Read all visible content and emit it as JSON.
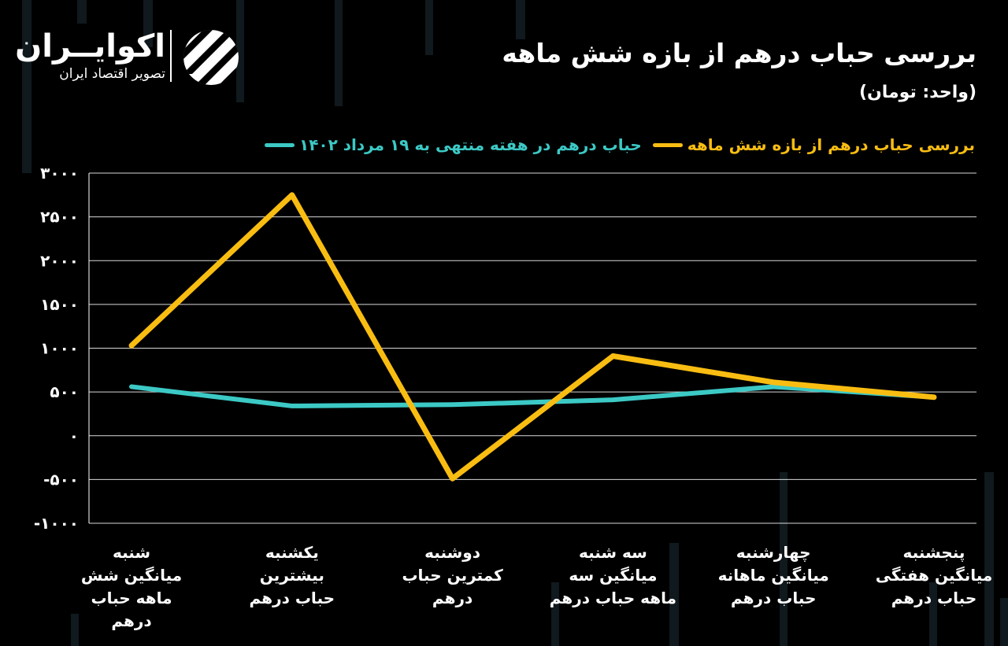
{
  "header": {
    "title": "بررسی  حباب درهم از بازه شش ماهه",
    "unit": "(واحد: تومان)"
  },
  "logo": {
    "name": "اکوایــران",
    "tagline": "تصویر اقتصاد ایران",
    "mark_icon": "ecoiran-logo-icon"
  },
  "colors": {
    "background": "#000000",
    "series_cyan": "#3cc9c5",
    "series_yellow": "#f9bd12",
    "grid": "#ffffff"
  },
  "chart_data": {
    "type": "line",
    "title": "بررسی  حباب درهم از بازه شش ماهه",
    "ylabel": "(واحد: تومان)",
    "ylim": [
      -1000,
      3000
    ],
    "yticks": [
      -1000,
      -500,
      0,
      500,
      1000,
      1500,
      2000,
      2500,
      3000
    ],
    "ytick_labels": [
      "-۱۰۰۰",
      "-۵۰۰",
      "۰",
      "۵۰۰",
      "۱۰۰۰",
      "۱۵۰۰",
      "۲۰۰۰",
      "۲۵۰۰",
      "۳۰۰۰"
    ],
    "grid": true,
    "legend_position": "top",
    "categories": [
      [
        "شنبه",
        "میانگین شش",
        "ماهه حباب",
        "درهم"
      ],
      [
        "یکشنبه",
        "بیشترین",
        "حباب درهم"
      ],
      [
        "دوشنبه",
        "کمترین حباب",
        "درهم"
      ],
      [
        "سه شنبه",
        "میانگین سه",
        "ماهه حباب درهم"
      ],
      [
        "چهارشنبه",
        "میانگین ماهانه",
        "حباب درهم"
      ],
      [
        "پنجشنبه",
        "میانگین هفتگی",
        "حباب درهم"
      ]
    ],
    "series": [
      {
        "name": "حباب درهم در هفته منتهی  به ۱۹ مرداد ۱۴۰۲",
        "color": "#3cc9c5",
        "values": [
          560,
          340,
          355,
          410,
          560,
          440
        ]
      },
      {
        "name": "بررسی حباب درهم از بازه شش ماهه",
        "color": "#f9bd12",
        "values": [
          1030,
          2750,
          -490,
          910,
          610,
          440
        ]
      }
    ]
  }
}
